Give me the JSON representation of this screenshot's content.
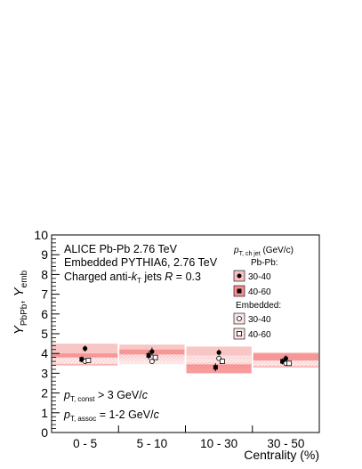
{
  "chart_data": {
    "type": "scatter",
    "categories": [
      "0 - 5",
      "5 - 10",
      "10 - 30",
      "30 - 50"
    ],
    "bin_edges": [
      0,
      1,
      2,
      3,
      4
    ],
    "ylim": [
      0,
      10
    ],
    "y_ticks": [
      "0",
      "1",
      "2",
      "3",
      "4",
      "5",
      "6",
      "7",
      "8",
      "9",
      "10"
    ],
    "xlabel": "Centrality (%)",
    "ylabel_main": "Y",
    "ylabel_sub1": "PbPb",
    "ylabel_sep": ", ",
    "ylabel_main2": "Y",
    "ylabel_sub2": "emb",
    "annotations": {
      "line1": "ALICE Pb-Pb 2.76 TeV",
      "line2": "Embedded PYTHIA6, 2.76 TeV",
      "line3_a": "Charged anti-",
      "line3_k": "k",
      "line3_sub": "T",
      "line3_b": " jets ",
      "line3_R": "R",
      "line3_c": " = 0.3",
      "cut1_p": "p",
      "cut1_sub": "T, const",
      "cut1_val": " > 3 GeV/",
      "cut1_c": "c",
      "cut2_p": "p",
      "cut2_sub": "T, assoc",
      "cut2_val": " = 1-2 GeV/",
      "cut2_c": "c"
    },
    "legend": {
      "header_p": "p",
      "header_sub": "T, ch jet",
      "header_unit": " (GeV/c)",
      "group1": "Pb-Pb:",
      "group2": "Embedded:",
      "entries": [
        "30-40",
        "40-60",
        "30-40",
        "40-60"
      ]
    },
    "series": [
      {
        "name": "30-40",
        "group": "Pb-Pb",
        "values": [
          4.25,
          4.1,
          4.05,
          3.75
        ],
        "errors": [
          0.15,
          0.2,
          0.15,
          0.15
        ],
        "sys_lo": [
          3.6,
          3.6,
          3.3,
          3.4
        ],
        "sys_hi": [
          4.5,
          4.45,
          4.35,
          4.05
        ],
        "color": "#f8c0c0",
        "marker": "filled-circle",
        "offset": 0.0
      },
      {
        "name": "40-60",
        "group": "Pb-Pb",
        "values": [
          3.7,
          3.9,
          3.3,
          3.6
        ],
        "errors": [
          0.15,
          0.2,
          0.2,
          0.15
        ],
        "sys_lo": [
          3.4,
          3.6,
          3.0,
          3.3
        ],
        "sys_hi": [
          4.0,
          4.2,
          3.8,
          4.0
        ],
        "color": "#f69090",
        "marker": "filled-square",
        "offset": -0.05
      },
      {
        "name": "30-40",
        "group": "Embedded",
        "values": [
          3.6,
          3.6,
          3.75,
          3.5
        ],
        "errors": [
          0.05,
          0.05,
          0.05,
          0.05
        ],
        "sys_lo": [
          3.45,
          3.45,
          3.55,
          3.4
        ],
        "sys_hi": [
          3.75,
          3.75,
          3.9,
          3.6
        ],
        "color": "#fde4e4",
        "marker": "open-circle",
        "offset": 0.0
      },
      {
        "name": "40-60",
        "group": "Embedded",
        "values": [
          3.65,
          3.8,
          3.6,
          3.5
        ],
        "errors": [
          0.05,
          0.05,
          0.05,
          0.05
        ],
        "sys_lo": [
          3.5,
          3.6,
          3.45,
          3.35
        ],
        "sys_hi": [
          3.8,
          3.95,
          3.75,
          3.65
        ],
        "color": "#fbd0d0",
        "marker": "open-square",
        "offset": 0.05
      }
    ]
  }
}
